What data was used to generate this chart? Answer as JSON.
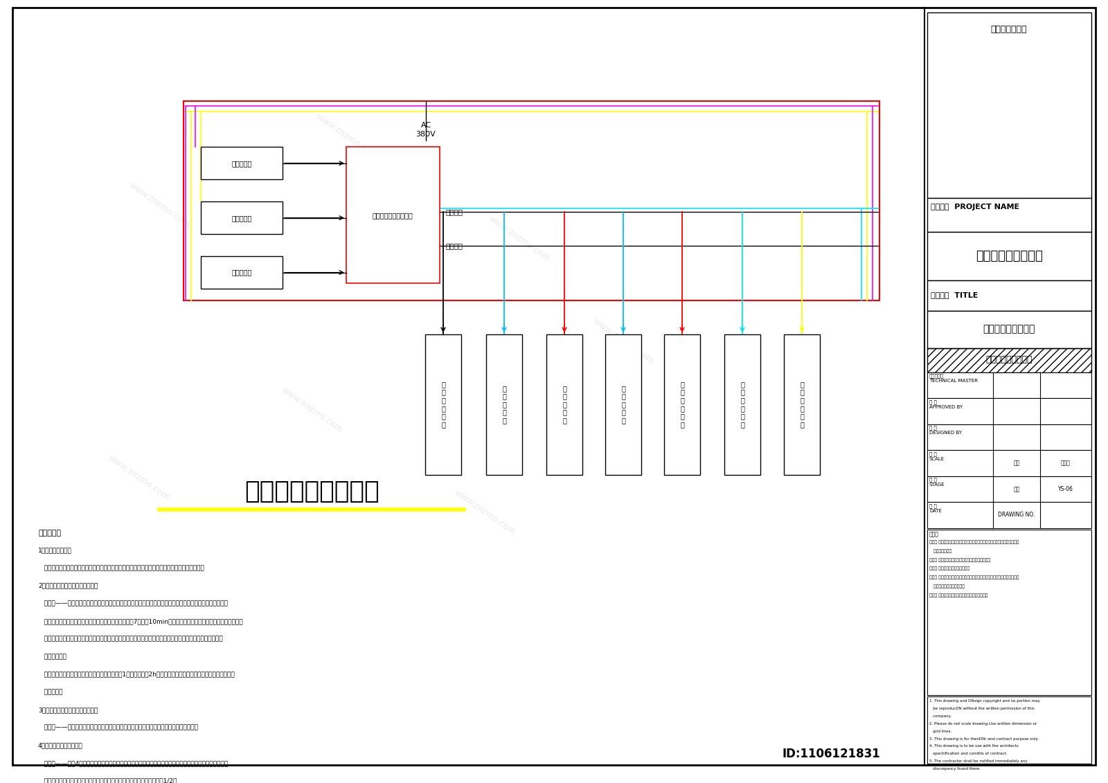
{
  "bg_color": "#ffffff",
  "title_main": "电气控制原理示意图",
  "title_underline_color": "#ffff00",
  "project_name": "雨水回收与利用项目",
  "drawing_title": "图纸名称  TITLE",
  "drawing_subtitle": "电气控制原理示意图",
  "system_name": "雨水收集与利用系统",
  "tech_stamp": "技术出图专用章",
  "proj_label": "项目名称  PROJECT NAME",
  "auto_label": "自动控制",
  "manual_label": "手动控制",
  "control_box_label": "电控柜（雨水控制柜）",
  "sensors": [
    "设备间液位",
    "蓄水池液位",
    "清水池液位"
  ],
  "devices": [
    "蓄\n水\n池\n潜\n污\n泵",
    "雨\n水\n提\n升\n泵",
    "回\n用\n供\n水\n泵",
    "补\n水\n电\n磁\n阀",
    "射\n流\n曝\n气\n装\n置",
    "紫\n外\n线\n消\n毒\n器",
    "设\n备\n间\n排\n污\n泵"
  ],
  "scale_value": "给排水",
  "drawing_no": "YS-06",
  "control_req_title": "控制要求：",
  "control_reqs": [
    "1、远传控制要求：",
    "   所有设备（泵阀）具有手动和自动控制功能，根据声光警示并自动刿起设备（如果有）投入运行。",
    "2、蓄水池液位及雨水泵控制要求：",
    "   蓄水池——一般设置、两个液位，分别为蓄水池高液位（停）、蓄水池低液位（启）。雨水泵开启准急液位。",
    "   蓄水池转换泵分为两个回路同时和限位控制，初始设定7个开启10min，运行音蓄水池中液位的控制，液位高则山。",
    "   雨水提升泵启动的同时开始蓄水池计时，液位时水泵关闭，液位时水泵开启；过滤蓄水池内尰定液位时，雨水",
    "   提升泵关闭。",
    "   射流曝气泵根据时间和液位控制，初始每天定时1次周期，曝气2h后停止；同时受蓄水池中液位的控制，蓄水池低",
    "   液位停止。",
    "3、设备间液位及排污泵控制要求：",
    "   设备间——一般设置、两个液位，分别为设备间排污泵启泵液位、设备间排污泵停泵液位。",
    "4、回用水泵分控制要求：",
    "   清水池——设置4个液位信号，液位时，泵水泵停止；中液位时，主水水泵开启；中液位时，主水水泵开启。",
    "   关闭；路液位时，写闭导夹开。第二路，中液位为清水池低于设备水面的1/2。"
  ],
  "notes_cn": [
    "（一） 此设计图则之版权归本公司所有，非经本公司书面批准，任何部分不得",
    "   擅自始写复制。",
    "（二） 概勿以比例量度此图，一切以图内数字为准。",
    "（三） 此图仅供标标记符合之用。",
    "（四） 使用此图时同时参阅建筑图定、结构图定，及其它有关图定、施工说明",
    "   及合同内列明的各项条件。",
    "（五） 承建商如发现有矛盾处，立即通知本公司。"
  ],
  "notes_en": [
    "1. This drawing and DNsign copyright and no portion may",
    "   be reproducDN without the written permission of this",
    "   company.",
    "2. Please do not scale drawing.Use written dimension or",
    "   grid lines.",
    "3. This drawing is for thenDNr and contract purpose only.",
    "4. This drawing is to be use with the architects",
    "   spechification and conditis of contract.",
    "5. The contractor shall be notified immediately any",
    "   discrepancy found there."
  ]
}
